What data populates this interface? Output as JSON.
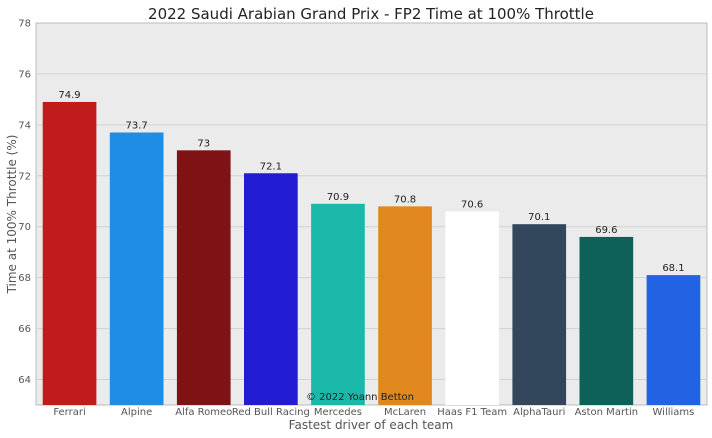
{
  "chart_data": {
    "type": "bar",
    "title": "2022 Saudi Arabian Grand Prix - FP2 Time at 100% Throttle",
    "xlabel": "Fastest driver of each team",
    "ylabel": "Time at 100% Throttle (%)",
    "ylim": [
      63,
      78
    ],
    "yticks": [
      64,
      66,
      68,
      70,
      72,
      74,
      76,
      78
    ],
    "grid": true,
    "categories": [
      "Ferrari",
      "Alpine",
      "Alfa Romeo",
      "Red Bull Racing",
      "Mercedes",
      "McLaren",
      "Haas F1 Team",
      "AlphaTauri",
      "Aston Martin",
      "Williams"
    ],
    "values": [
      74.9,
      73.7,
      73,
      72.1,
      70.9,
      70.8,
      70.6,
      70.1,
      69.6,
      68.1
    ],
    "value_labels": [
      "74.9",
      "73.7",
      "73",
      "72.1",
      "70.9",
      "70.8",
      "70.6",
      "70.1",
      "69.6",
      "68.1"
    ],
    "colors": [
      "#c11b1b",
      "#1f8de3",
      "#7f1215",
      "#211bd4",
      "#19b8a8",
      "#e0871e",
      "#ffffff",
      "#33475c",
      "#0e6158",
      "#2163e3"
    ],
    "annotation": "© 2022 Yoann Betton"
  }
}
